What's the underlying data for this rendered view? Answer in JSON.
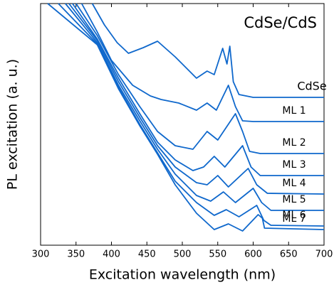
{
  "chart_data": {
    "type": "line",
    "annotation": "CdSe/CdS",
    "xlabel": "Excitation wavelength (nm)",
    "ylabel": "PL excitation (a. u.)",
    "xlim": [
      300,
      700
    ],
    "xticks": [
      300,
      350,
      400,
      450,
      500,
      550,
      600,
      650,
      700
    ],
    "ylim": [
      0,
      340
    ],
    "color": "#0f68cc",
    "series": [
      {
        "name": "CdSe",
        "x": [
          373,
          390,
          408,
          424,
          445,
          465,
          490,
          520,
          535,
          545,
          557,
          563,
          567,
          572,
          580,
          600,
          700
        ],
        "values": [
          340,
          310,
          285,
          270,
          278,
          287,
          265,
          235,
          245,
          240,
          277,
          255,
          280,
          230,
          212,
          208,
          208
        ]
      },
      {
        "name": "ML 1",
        "x": [
          358,
          380,
          400,
          430,
          455,
          470,
          495,
          520,
          535,
          548,
          565,
          575,
          585,
          600,
          700
        ],
        "values": [
          340,
          300,
          260,
          225,
          210,
          205,
          200,
          190,
          200,
          190,
          225,
          195,
          175,
          174,
          174
        ]
      },
      {
        "name": "ML 2",
        "x": [
          350,
          380,
          410,
          440,
          465,
          490,
          515,
          535,
          550,
          575,
          585,
          595,
          610,
          700
        ],
        "values": [
          340,
          295,
          240,
          195,
          160,
          140,
          135,
          160,
          148,
          185,
          160,
          132,
          129,
          129
        ]
      },
      {
        "name": "ML 3",
        "x": [
          345,
          380,
          410,
          440,
          465,
          490,
          515,
          530,
          545,
          560,
          585,
          597,
          610,
          700
        ],
        "values": [
          340,
          290,
          235,
          185,
          145,
          120,
          105,
          110,
          125,
          110,
          140,
          110,
          98,
          98
        ]
      },
      {
        "name": "ML 4",
        "x": [
          340,
          380,
          410,
          440,
          465,
          490,
          520,
          535,
          550,
          565,
          593,
          605,
          620,
          700
        ],
        "values": [
          340,
          288,
          230,
          180,
          140,
          110,
          88,
          85,
          98,
          82,
          108,
          85,
          73,
          72
        ]
      },
      {
        "name": "ML 5",
        "x": [
          335,
          380,
          410,
          440,
          465,
          490,
          520,
          540,
          558,
          575,
          600,
          612,
          625,
          700
        ],
        "values": [
          340,
          285,
          225,
          175,
          135,
          100,
          70,
          62,
          75,
          60,
          80,
          60,
          49,
          49
        ]
      },
      {
        "name": "ML 6",
        "x": [
          325,
          380,
          410,
          440,
          465,
          490,
          520,
          545,
          562,
          580,
          605,
          615,
          625,
          700
        ],
        "values": [
          340,
          283,
          222,
          170,
          130,
          90,
          60,
          42,
          50,
          40,
          56,
          35,
          28,
          27
        ]
      },
      {
        "name": "ML 7",
        "x": [
          310,
          380,
          410,
          440,
          465,
          490,
          520,
          545,
          565,
          585,
          607,
          613,
          616,
          700
        ],
        "values": [
          340,
          282,
          220,
          168,
          128,
          85,
          45,
          22,
          30,
          20,
          43,
          38,
          24,
          22
        ]
      }
    ]
  }
}
